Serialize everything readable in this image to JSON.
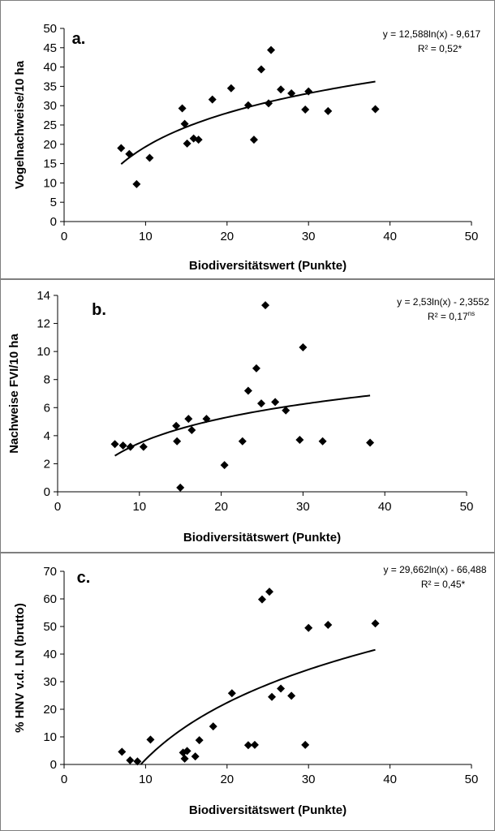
{
  "figure": {
    "border_color": "#7f7f7f",
    "marker_color": "#000000",
    "line_color": "#000000"
  },
  "chart_data": [
    {
      "type": "scatter",
      "panel_label": "a.",
      "xlabel": "Biodiversitätswert (Punkte)",
      "ylabel": "Vogelnachweise/10 ha",
      "xlim": [
        0,
        50
      ],
      "ylim": [
        0,
        50
      ],
      "x_ticks": [
        0,
        10,
        20,
        30,
        40,
        50
      ],
      "y_ticks": [
        0,
        5,
        10,
        15,
        20,
        25,
        30,
        35,
        40,
        45,
        50
      ],
      "equation": "y = 12,588ln(x) - 9,617",
      "r2_text": "R² = 0,52*",
      "r2_sup": "",
      "trend": {
        "a": 12.588,
        "b": -9.617,
        "x_min": 7,
        "x_max": 38.2
      },
      "points": [
        [
          7,
          19
        ],
        [
          8,
          17.5
        ],
        [
          8.9,
          9.7
        ],
        [
          10.5,
          16.5
        ],
        [
          14.5,
          29.3
        ],
        [
          14.8,
          25.3
        ],
        [
          15.1,
          20.2
        ],
        [
          15.9,
          21.5
        ],
        [
          16.5,
          21.2
        ],
        [
          18.2,
          31.6
        ],
        [
          20.5,
          34.5
        ],
        [
          22.6,
          30.1
        ],
        [
          23.3,
          21.2
        ],
        [
          24.2,
          39.4
        ],
        [
          25.1,
          30.6
        ],
        [
          25.4,
          44.4
        ],
        [
          26.6,
          34.2
        ],
        [
          27.9,
          33.2
        ],
        [
          29.6,
          29
        ],
        [
          30,
          33.7
        ],
        [
          32.4,
          28.6
        ],
        [
          38.2,
          29.1
        ]
      ]
    },
    {
      "type": "scatter",
      "panel_label": "b.",
      "xlabel": "Biodiversitätswert (Punkte)",
      "ylabel": "Nachweise FVI/10 ha",
      "xlim": [
        0,
        50
      ],
      "ylim": [
        0,
        14
      ],
      "x_ticks": [
        0,
        10,
        20,
        30,
        40,
        50
      ],
      "y_ticks": [
        0,
        2,
        4,
        6,
        8,
        10,
        12,
        14
      ],
      "equation": "y = 2,53ln(x) - 2,3552",
      "r2_text": "R² = 0,17",
      "r2_sup": "ns",
      "trend": {
        "a": 2.53,
        "b": -2.3552,
        "x_min": 7,
        "x_max": 38.2
      },
      "points": [
        [
          7,
          3.4
        ],
        [
          8,
          3.3
        ],
        [
          8.9,
          3.2
        ],
        [
          10.5,
          3.2
        ],
        [
          14.5,
          4.7
        ],
        [
          14.6,
          3.6
        ],
        [
          15,
          0.3
        ],
        [
          16,
          5.2
        ],
        [
          16.4,
          4.4
        ],
        [
          18.2,
          5.2
        ],
        [
          20.4,
          1.9
        ],
        [
          22.6,
          3.6
        ],
        [
          23.3,
          7.2
        ],
        [
          24.3,
          8.8
        ],
        [
          24.9,
          6.3
        ],
        [
          25.4,
          13.3
        ],
        [
          26.6,
          6.4
        ],
        [
          27.9,
          5.8
        ],
        [
          29.6,
          3.7
        ],
        [
          30,
          10.3
        ],
        [
          32.4,
          3.6
        ],
        [
          38.2,
          3.5
        ]
      ]
    },
    {
      "type": "scatter",
      "panel_label": "c.",
      "xlabel": "Biodiversitätswert (Punkte)",
      "ylabel": "% HNV v.d. LN (brutto)",
      "xlim": [
        0,
        50
      ],
      "ylim": [
        0,
        70
      ],
      "x_ticks": [
        0,
        10,
        20,
        30,
        40,
        50
      ],
      "y_ticks": [
        0,
        10,
        20,
        30,
        40,
        50,
        60,
        70
      ],
      "equation": "y = 29,662ln(x) - 66,488",
      "r2_text": "R² = 0,45*",
      "r2_sup": "",
      "trend": {
        "a": 29.662,
        "b": -66.488,
        "x_min": 9.4,
        "x_max": 38.2
      },
      "points": [
        [
          7.1,
          4.6
        ],
        [
          8.1,
          1.5
        ],
        [
          9,
          1.1
        ],
        [
          10.6,
          9
        ],
        [
          14.6,
          4.3
        ],
        [
          14.8,
          2.1
        ],
        [
          15.1,
          4.9
        ],
        [
          16.1,
          2.9
        ],
        [
          16.6,
          8.8
        ],
        [
          18.3,
          13.8
        ],
        [
          20.6,
          25.8
        ],
        [
          22.6,
          7
        ],
        [
          23.4,
          7.1
        ],
        [
          24.3,
          59.8
        ],
        [
          25.2,
          62.6
        ],
        [
          25.5,
          24.5
        ],
        [
          26.6,
          27.5
        ],
        [
          27.9,
          24.9
        ],
        [
          29.6,
          7.1
        ],
        [
          30,
          49.5
        ],
        [
          32.4,
          50.6
        ],
        [
          38.2,
          51.1
        ]
      ]
    }
  ]
}
